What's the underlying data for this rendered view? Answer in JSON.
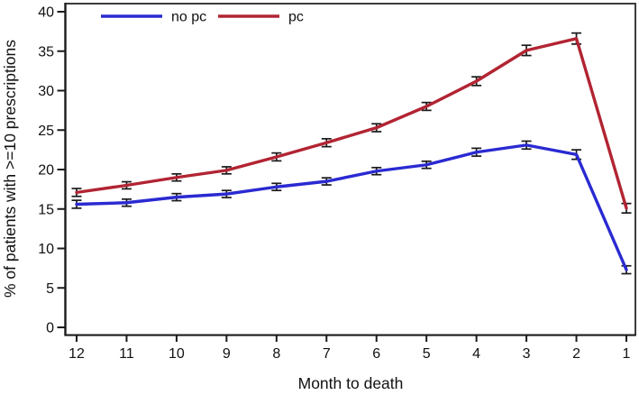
{
  "chart_data": {
    "type": "line",
    "title": "",
    "xlabel": "Month to death",
    "ylabel": "% of patients with >=10 prescriptions",
    "x": [
      12,
      11,
      10,
      9,
      8,
      7,
      6,
      5,
      4,
      3,
      2,
      1
    ],
    "x_tick_labels": [
      "12",
      "11",
      "10",
      "9",
      "8",
      "7",
      "6",
      "5",
      "4",
      "3",
      "2",
      "1"
    ],
    "y_ticks": [
      0,
      5,
      10,
      15,
      20,
      25,
      30,
      35,
      40
    ],
    "ylim": [
      0,
      40
    ],
    "grid": false,
    "legend_position": "top-inside",
    "error_bar_color": "#1a1a1a",
    "frame_color": "#3c3c3c",
    "series": [
      {
        "name": "no pc",
        "color": "#2a2ad2",
        "values": [
          15.6,
          15.8,
          16.5,
          16.9,
          17.8,
          18.5,
          19.8,
          20.6,
          22.2,
          23.1,
          21.9,
          7.3
        ],
        "error_bars": [
          0.5,
          0.45,
          0.45,
          0.45,
          0.45,
          0.45,
          0.45,
          0.45,
          0.5,
          0.5,
          0.6,
          0.5
        ]
      },
      {
        "name": "pc",
        "color": "#b22433",
        "values": [
          17.1,
          18.0,
          19.0,
          19.9,
          21.6,
          23.4,
          25.3,
          28.0,
          31.2,
          35.1,
          36.6,
          15.1
        ],
        "error_bars": [
          0.5,
          0.45,
          0.45,
          0.45,
          0.5,
          0.5,
          0.5,
          0.5,
          0.55,
          0.65,
          0.7,
          0.6
        ]
      }
    ]
  }
}
